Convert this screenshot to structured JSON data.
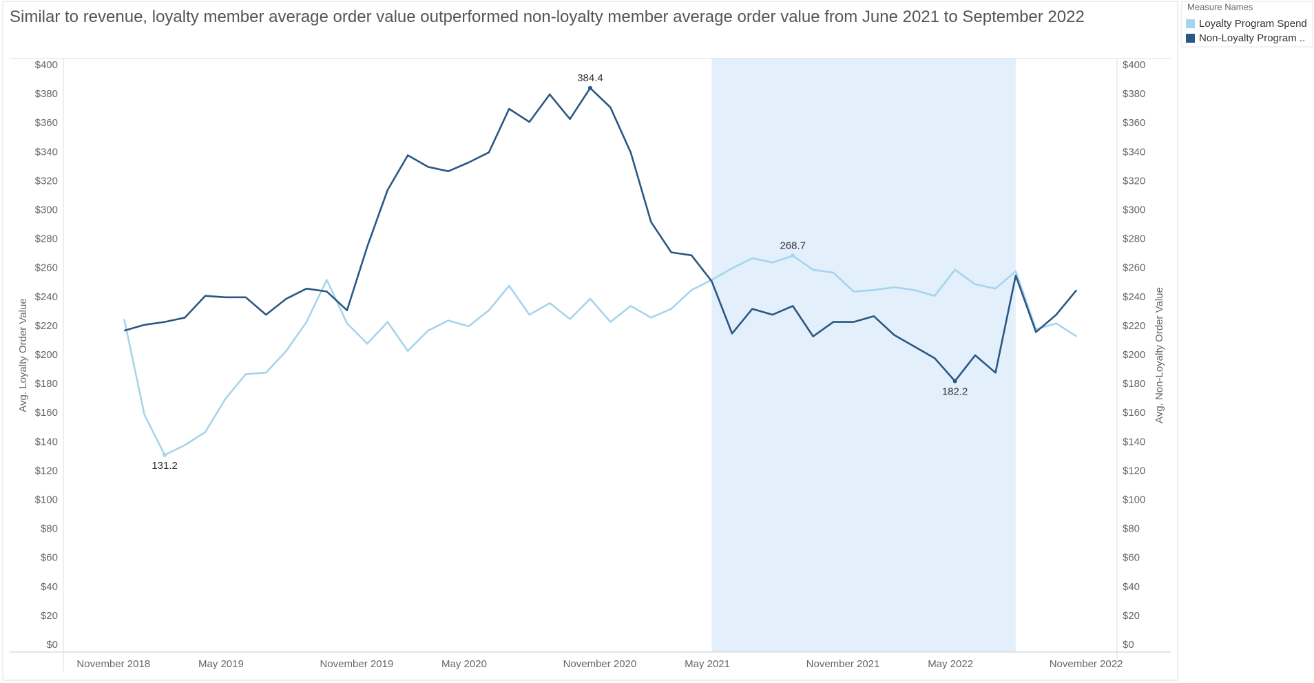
{
  "chart_data": {
    "type": "line",
    "title": "Similar to revenue, loyalty member average order value outperformed non-loyalty member average order value from June 2021 to September 2022",
    "legend_title": "Measure Names",
    "legend": "top-right",
    "ylabel": "Avg. Loyalty Order Value",
    "y2label": "Avg. Non-Loyalty Order Value",
    "x": [
      "January 2019",
      "February 2019",
      "March 2019",
      "April 2019",
      "May 2019",
      "June 2019",
      "July 2019",
      "August 2019",
      "September 2019",
      "October 2019",
      "November 2019",
      "December 2019",
      "January 2020",
      "February 2020",
      "March 2020",
      "April 2020",
      "May 2020",
      "June 2020",
      "July 2020",
      "August 2020",
      "September 2020",
      "October 2020",
      "November 2020",
      "December 2020",
      "January 2021",
      "February 2021",
      "March 2021",
      "April 2021",
      "May 2021",
      "June 2021",
      "July 2021",
      "August 2021",
      "September 2021",
      "October 2021",
      "November 2021",
      "December 2021",
      "January 2022",
      "February 2022",
      "March 2022",
      "April 2022",
      "May 2022",
      "June 2022",
      "July 2022",
      "August 2022",
      "September 2022",
      "October 2022",
      "November 2022",
      "December 2022"
    ],
    "xlim": [
      "October 2018",
      "February 2023"
    ],
    "xticks": [
      "November 2018",
      "May 2019",
      "November 2019",
      "May 2020",
      "November 2020",
      "May 2021",
      "November 2021",
      "May 2022",
      "November 2022"
    ],
    "highlight": [
      "June 2021",
      "September 2022"
    ],
    "highlight_color": "#e3f0fc",
    "series": [
      {
        "name": "Loyalty Program Spend",
        "color": "#a6d4ec",
        "values": [
          225,
          159,
          131.2,
          138,
          147,
          170,
          187,
          188,
          203,
          223,
          252,
          222,
          208,
          223,
          203,
          217,
          224,
          220,
          231,
          248,
          228,
          236,
          225,
          239,
          223,
          234,
          226,
          232,
          245,
          252,
          260,
          267,
          264,
          268.7,
          259,
          257,
          244,
          245,
          247,
          245,
          241,
          259,
          249,
          246,
          258,
          218,
          222,
          213
        ]
      },
      {
        "name": "Non-Loyalty Program ..",
        "color": "#2a5783",
        "axis": "y2",
        "values": [
          217,
          221,
          223,
          226,
          241,
          240,
          240,
          228,
          239,
          246,
          244,
          231,
          275,
          314,
          338,
          330,
          327,
          333,
          340,
          370,
          361,
          380,
          363,
          384.4,
          371,
          340,
          292,
          271,
          269,
          251,
          215,
          232,
          228,
          234,
          213,
          223,
          223,
          227,
          214,
          206,
          198,
          182.2,
          200,
          188,
          255,
          216,
          228,
          245
        ]
      }
    ],
    "ylim": [
      0,
      400
    ],
    "yticks": [
      {
        "value": 0,
        "label": "$0"
      },
      {
        "value": 20,
        "label": "$20"
      },
      {
        "value": 40,
        "label": "$40"
      },
      {
        "value": 60,
        "label": "$60"
      },
      {
        "value": 80,
        "label": "$80"
      },
      {
        "value": 100,
        "label": "$100"
      },
      {
        "value": 120,
        "label": "$120"
      },
      {
        "value": 140,
        "label": "$140"
      },
      {
        "value": 160,
        "label": "$160"
      },
      {
        "value": 180,
        "label": "$180"
      },
      {
        "value": 200,
        "label": "$200"
      },
      {
        "value": 220,
        "label": "$220"
      },
      {
        "value": 240,
        "label": "$240"
      },
      {
        "value": 260,
        "label": "$260"
      },
      {
        "value": 280,
        "label": "$280"
      },
      {
        "value": 300,
        "label": "$300"
      },
      {
        "value": 320,
        "label": "$320"
      },
      {
        "value": 340,
        "label": "$340"
      },
      {
        "value": 360,
        "label": "$360"
      },
      {
        "value": 380,
        "label": "$380"
      },
      {
        "value": 400,
        "label": "$400"
      }
    ],
    "y2lim": [
      0,
      400
    ],
    "y2ticks": [
      {
        "value": 0,
        "label": "$0"
      },
      {
        "value": 20,
        "label": "$20"
      },
      {
        "value": 40,
        "label": "$40"
      },
      {
        "value": 60,
        "label": "$60"
      },
      {
        "value": 80,
        "label": "$80"
      },
      {
        "value": 100,
        "label": "$100"
      },
      {
        "value": 120,
        "label": "$120"
      },
      {
        "value": 140,
        "label": "$140"
      },
      {
        "value": 160,
        "label": "$160"
      },
      {
        "value": 180,
        "label": "$180"
      },
      {
        "value": 200,
        "label": "$200"
      },
      {
        "value": 220,
        "label": "$220"
      },
      {
        "value": 240,
        "label": "$240"
      },
      {
        "value": 260,
        "label": "$260"
      },
      {
        "value": 280,
        "label": "$280"
      },
      {
        "value": 300,
        "label": "$300"
      },
      {
        "value": 320,
        "label": "$320"
      },
      {
        "value": 340,
        "label": "$340"
      },
      {
        "value": 360,
        "label": "$360"
      },
      {
        "value": 380,
        "label": "$380"
      },
      {
        "value": 400,
        "label": "$400"
      }
    ],
    "grid": false
  }
}
